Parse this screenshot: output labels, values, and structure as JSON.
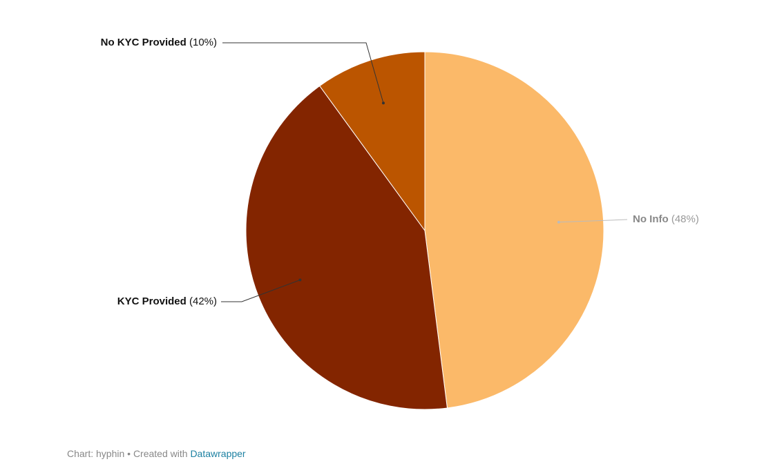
{
  "chart_data": {
    "type": "pie",
    "categories": [
      "No Info",
      "KYC Provided",
      "No KYC Provided"
    ],
    "values": [
      48,
      42,
      10
    ],
    "value_labels": [
      "(48%)",
      "(42%)",
      "(10%)"
    ],
    "colors": [
      "#fbb969",
      "#832500",
      "#bb5500"
    ]
  },
  "footer": {
    "text": "Chart: hyphin • Created with",
    "link": "Datawrapper"
  }
}
